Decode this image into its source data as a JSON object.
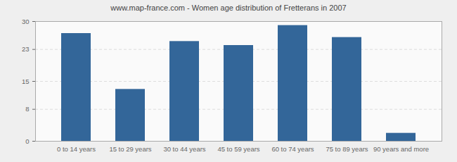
{
  "chart_data": {
    "type": "bar",
    "title": "www.map-france.com - Women age distribution of Fretterans in 2007",
    "categories": [
      "0 to 14 years",
      "15 to 29 years",
      "30 to 44 years",
      "45 to 59 years",
      "60 to 74 years",
      "75 to 89 years",
      "90 years and more"
    ],
    "values": [
      27,
      13,
      25,
      24,
      29,
      26,
      2
    ],
    "color": "#336699",
    "ylim": [
      0,
      30
    ],
    "yticks": [
      0,
      8,
      15,
      23,
      30
    ],
    "grid": true
  }
}
